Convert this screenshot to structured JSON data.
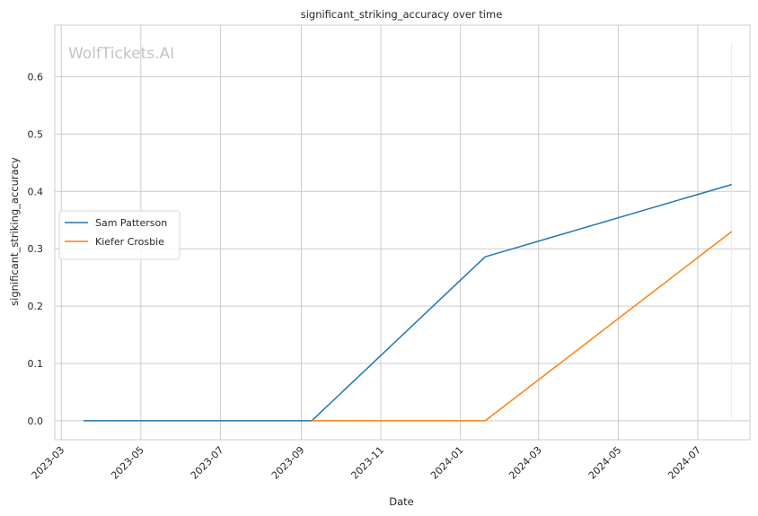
{
  "watermark": "WolfTickets.AI",
  "chart_data": {
    "type": "line",
    "title": "significant_striking_accuracy over time",
    "xlabel": "Date",
    "ylabel": "significant_striking_accuracy",
    "x_axis": "date",
    "xlim": [
      "2023-02-24",
      "2024-08-10"
    ],
    "ylim": [
      -0.033,
      0.69
    ],
    "x_ticks": [
      "2023-03",
      "2023-05",
      "2023-07",
      "2023-09",
      "2023-11",
      "2024-01",
      "2024-03",
      "2024-05",
      "2024-07"
    ],
    "y_ticks": [
      0.0,
      0.1,
      0.2,
      0.3,
      0.4,
      0.5,
      0.6
    ],
    "y_tick_labels": [
      "0.0",
      "0.1",
      "0.2",
      "0.3",
      "0.4",
      "0.5",
      "0.6"
    ],
    "grid": true,
    "legend_position": "center-left",
    "series": [
      {
        "name": "Sam Patterson",
        "color": "#1f77b4",
        "points": [
          {
            "x": "2023-03-18",
            "y": 0.0
          },
          {
            "x": "2023-09-09",
            "y": 0.0
          },
          {
            "x": "2024-01-20",
            "y": 0.286
          },
          {
            "x": "2024-07-27",
            "y": 0.412
          }
        ]
      },
      {
        "name": "Kiefer Crosbie",
        "color": "#ff7f0e",
        "points": [
          {
            "x": "2023-09-09",
            "y": 0.0
          },
          {
            "x": "2024-01-20",
            "y": 0.0
          },
          {
            "x": "2024-07-27",
            "y": 0.33
          }
        ]
      }
    ],
    "marker_line": {
      "x": "2024-07-27",
      "y_range": [
        0.0,
        0.66
      ],
      "color": "#fbe3cc"
    }
  }
}
